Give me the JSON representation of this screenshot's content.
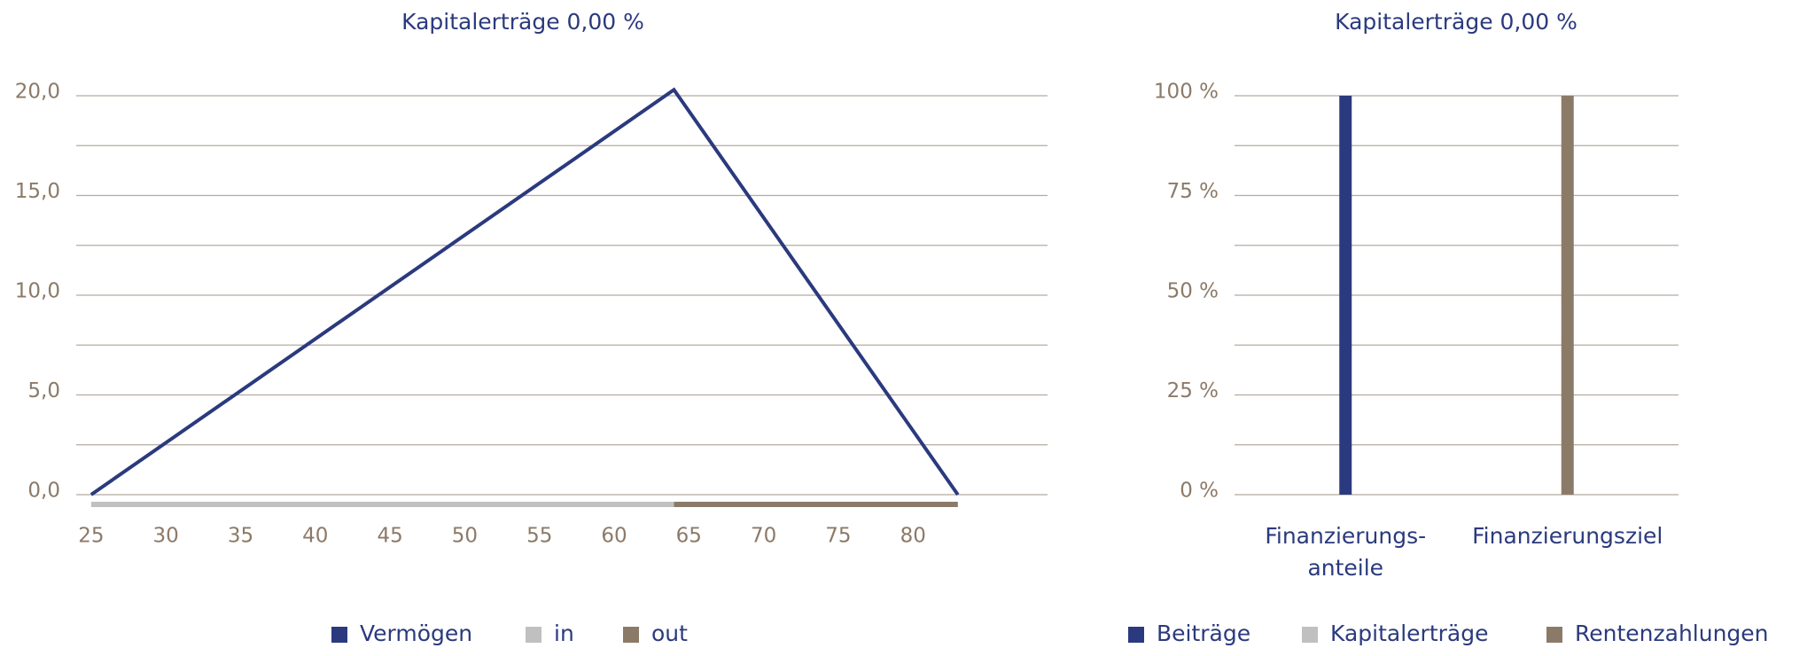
{
  "chart_data": [
    {
      "type": "line",
      "title": "Kapitalerträge 0,00 %",
      "x": [
        25,
        64,
        83
      ],
      "series": [
        {
          "name": "Vermögen",
          "color": "#2b3a7e",
          "values": [
            0,
            20.3,
            0
          ]
        }
      ],
      "ranges": [
        {
          "name": "in",
          "color": "#c0c0c0",
          "start": 25,
          "end": 64
        },
        {
          "name": "out",
          "color": "#8c7a68",
          "start": 64,
          "end": 83
        }
      ],
      "xlim": [
        24,
        89
      ],
      "xticks": [
        25,
        30,
        35,
        40,
        45,
        50,
        55,
        60,
        65,
        70,
        75,
        80
      ],
      "ylim": [
        0,
        20
      ],
      "yticks": [
        {
          "value": 0,
          "label": "0,0"
        },
        {
          "value": 5,
          "label": "5,0"
        },
        {
          "value": 10,
          "label": "10,0"
        },
        {
          "value": 15,
          "label": "15,0"
        },
        {
          "value": 20,
          "label": "20,0"
        }
      ],
      "grid_lines": [
        0,
        2.5,
        5,
        7.5,
        10,
        12.5,
        15,
        17.5,
        20
      ]
    },
    {
      "type": "bar",
      "title": "Kapitalerträge 0,00 %",
      "stacked": true,
      "categories": [
        "Finanzierungs-\nanteile",
        "Finanzierungsziel"
      ],
      "series": [
        {
          "name": "Beiträge",
          "color": "#2b3a7e",
          "values": [
            100,
            0
          ]
        },
        {
          "name": "Kapitalerträge",
          "color": "#c0c0c0",
          "values": [
            0,
            0
          ]
        },
        {
          "name": "Rentenzahlungen",
          "color": "#8c7a68",
          "values": [
            0,
            100
          ]
        }
      ],
      "ylim": [
        0,
        100
      ],
      "yticks": [
        {
          "value": 0,
          "label": "0 %"
        },
        {
          "value": 25,
          "label": "25 %"
        },
        {
          "value": 50,
          "label": "50 %"
        },
        {
          "value": 75,
          "label": "75 %"
        },
        {
          "value": 100,
          "label": "100 %"
        }
      ],
      "grid_lines": [
        0,
        12.5,
        25,
        37.5,
        50,
        62.5,
        75,
        87.5,
        100
      ]
    }
  ]
}
